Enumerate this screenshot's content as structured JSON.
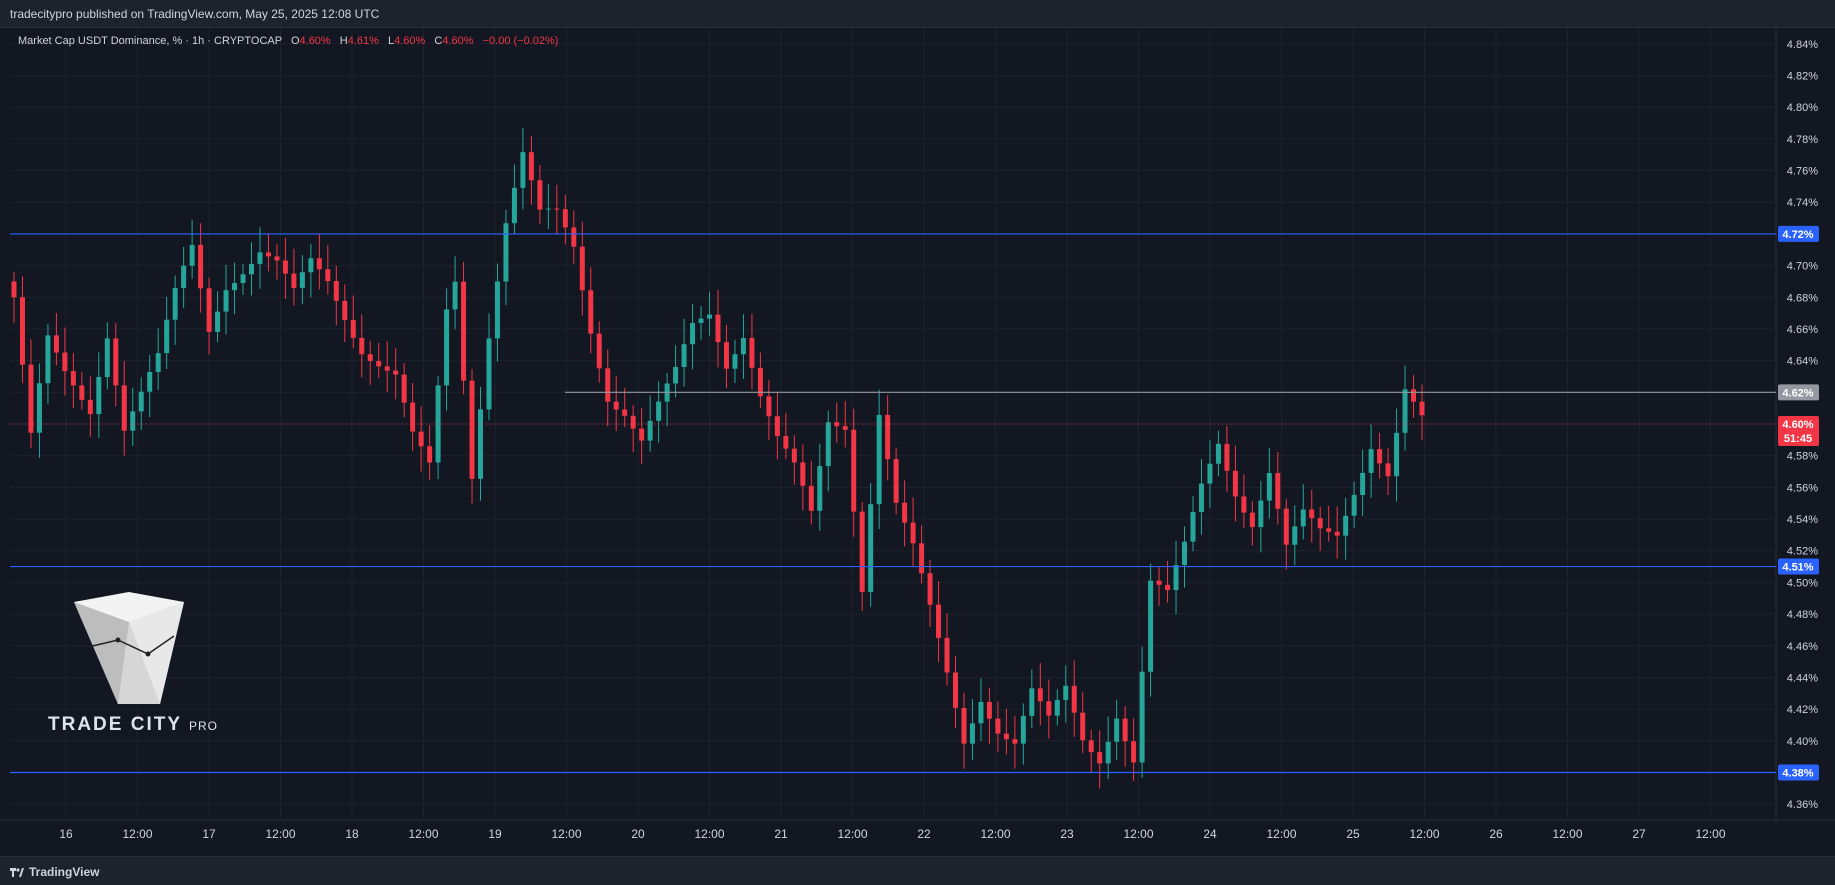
{
  "header": {
    "published": "tradecitypro published on TradingView.com, May 25, 2025 12:08 UTC"
  },
  "legend": {
    "symbol": "Market Cap USDT Dominance, % · 1h · CRYPTOCAP",
    "o_label": "O",
    "o": "4.60%",
    "h_label": "H",
    "h": "4.61%",
    "l_label": "L",
    "l": "4.60%",
    "c_label": "C",
    "c": "4.60%",
    "change": "−0.00 (−0.02%)"
  },
  "footer": {
    "brand": "TradingView"
  },
  "watermark": {
    "name": "TRADE CITY",
    "suffix": "PRO"
  },
  "colors": {
    "up": "#26a69a",
    "down": "#f23645",
    "level": "#2962ff",
    "grid": "#1e222d",
    "bg": "#131722"
  },
  "chart_data": {
    "type": "candlestick",
    "timeframe": "1h",
    "y_unit": "%",
    "ylim": [
      4.35,
      4.85
    ],
    "y_ticks": [
      "4.84%",
      "4.82%",
      "4.80%",
      "4.78%",
      "4.76%",
      "4.74%",
      "4.72%",
      "4.70%",
      "4.68%",
      "4.66%",
      "4.64%",
      "4.62%",
      "4.60%",
      "4.58%",
      "4.56%",
      "4.54%",
      "4.52%",
      "4.50%",
      "4.48%",
      "4.46%",
      "4.44%",
      "4.42%",
      "4.40%",
      "4.38%",
      "4.36%"
    ],
    "x_ticks": [
      "16",
      "12:00",
      "17",
      "12:00",
      "18",
      "12:00",
      "19",
      "12:00",
      "20",
      "12:00",
      "21",
      "12:00",
      "22",
      "12:00",
      "23",
      "12:00",
      "24",
      "12:00",
      "25",
      "12:00",
      "26",
      "12:00",
      "27",
      "12:00"
    ],
    "levels": [
      {
        "value": 4.72,
        "label": "4.72%",
        "color": "#2962ff"
      },
      {
        "value": 4.62,
        "label": "4.62%",
        "color": "#9598a1"
      },
      {
        "value": 4.51,
        "label": "4.51%",
        "color": "#2962ff"
      },
      {
        "value": 4.38,
        "label": "4.38%",
        "color": "#2962ff"
      }
    ],
    "last_price": {
      "value": 4.6,
      "label": "4.60%",
      "countdown": "51:45"
    },
    "close_path": [
      [
        0,
        4.68
      ],
      [
        2,
        4.59
      ],
      [
        4,
        4.65
      ],
      [
        6,
        4.63
      ],
      [
        9,
        4.61
      ],
      [
        11,
        4.66
      ],
      [
        13,
        4.6
      ],
      [
        15,
        4.62
      ],
      [
        17,
        4.64
      ],
      [
        19,
        4.68
      ],
      [
        21,
        4.71
      ],
      [
        23,
        4.66
      ],
      [
        25,
        4.69
      ],
      [
        27,
        4.7
      ],
      [
        29,
        4.71
      ],
      [
        31,
        4.7
      ],
      [
        33,
        4.68
      ],
      [
        35,
        4.7
      ],
      [
        37,
        4.69
      ],
      [
        39,
        4.67
      ],
      [
        41,
        4.65
      ],
      [
        43,
        4.64
      ],
      [
        45,
        4.63
      ],
      [
        47,
        4.59
      ],
      [
        49,
        4.57
      ],
      [
        51,
        4.67
      ],
      [
        52,
        4.69
      ],
      [
        54,
        4.57
      ],
      [
        56,
        4.66
      ],
      [
        58,
        4.73
      ],
      [
        60,
        4.77
      ],
      [
        62,
        4.73
      ],
      [
        64,
        4.73
      ],
      [
        66,
        4.71
      ],
      [
        68,
        4.66
      ],
      [
        70,
        4.62
      ],
      [
        72,
        4.61
      ],
      [
        74,
        4.59
      ],
      [
        76,
        4.61
      ],
      [
        78,
        4.63
      ],
      [
        80,
        4.66
      ],
      [
        82,
        4.67
      ],
      [
        84,
        4.64
      ],
      [
        86,
        4.66
      ],
      [
        88,
        4.62
      ],
      [
        90,
        4.59
      ],
      [
        92,
        4.57
      ],
      [
        94,
        4.54
      ],
      [
        96,
        4.6
      ],
      [
        98,
        4.6
      ],
      [
        100,
        4.5
      ],
      [
        102,
        4.61
      ],
      [
        104,
        4.55
      ],
      [
        106,
        4.52
      ],
      [
        108,
        4.48
      ],
      [
        110,
        4.44
      ],
      [
        112,
        4.4
      ],
      [
        114,
        4.43
      ],
      [
        116,
        4.41
      ],
      [
        118,
        4.4
      ],
      [
        120,
        4.43
      ],
      [
        122,
        4.41
      ],
      [
        124,
        4.43
      ],
      [
        126,
        4.4
      ],
      [
        128,
        4.39
      ],
      [
        130,
        4.42
      ],
      [
        132,
        4.39
      ],
      [
        134,
        4.5
      ],
      [
        136,
        4.49
      ],
      [
        138,
        4.52
      ],
      [
        140,
        4.56
      ],
      [
        142,
        4.59
      ],
      [
        144,
        4.56
      ],
      [
        146,
        4.54
      ],
      [
        148,
        4.57
      ],
      [
        150,
        4.52
      ],
      [
        152,
        4.54
      ],
      [
        154,
        4.53
      ],
      [
        156,
        4.53
      ],
      [
        158,
        4.56
      ],
      [
        160,
        4.59
      ],
      [
        162,
        4.57
      ],
      [
        164,
        4.62
      ],
      [
        166,
        4.6
      ]
    ]
  }
}
